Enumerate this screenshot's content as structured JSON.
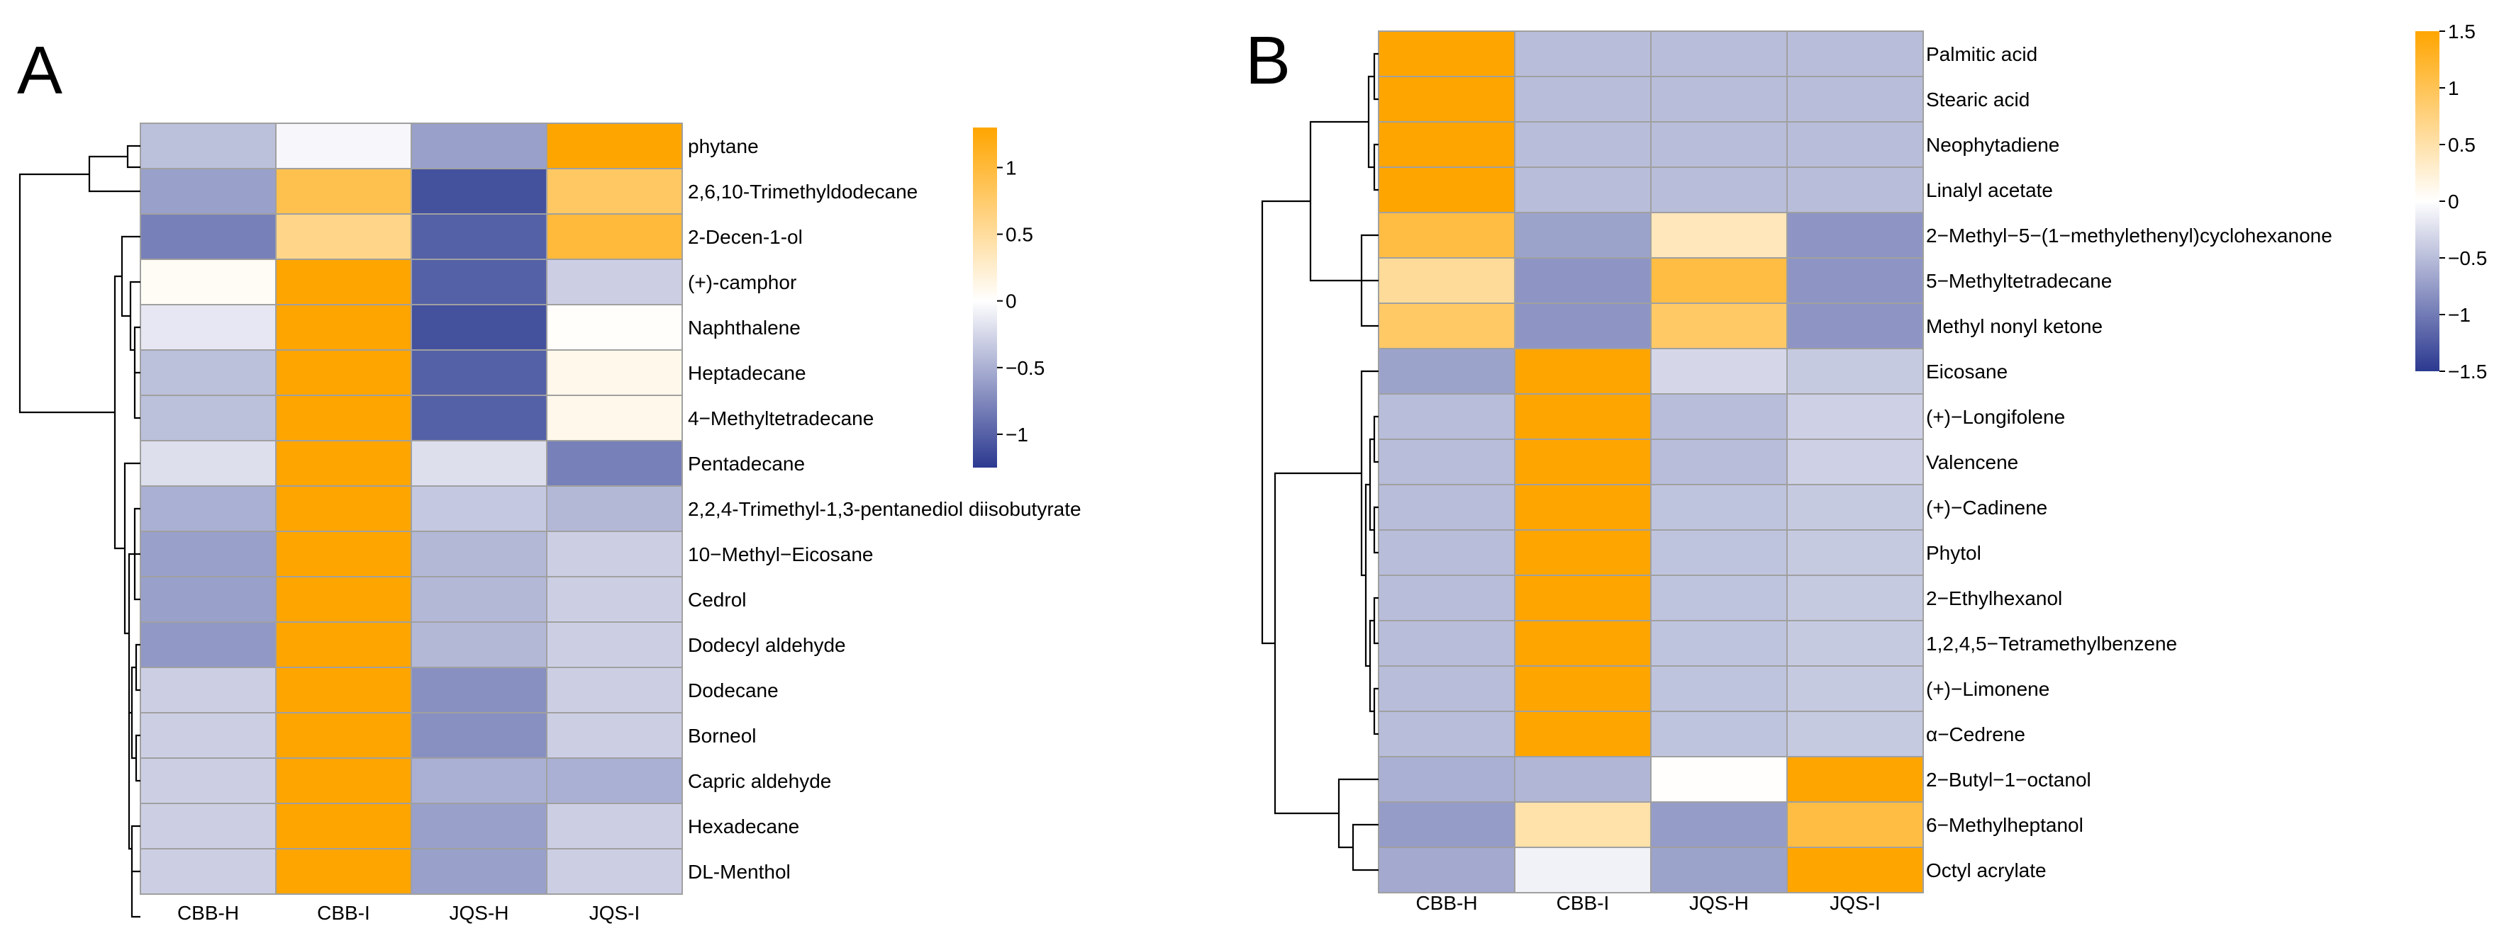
{
  "chart_data": [
    {
      "type": "heatmap",
      "panel": "A",
      "columns": [
        "CBB-H",
        "CBB-I",
        "JQS-H",
        "JQS-I"
      ],
      "rows": [
        "phytane",
        "2,6,10-Trimethyldodecane",
        "2-Decen-1-ol",
        "(+)-camphor",
        "Naphthalene",
        "Heptadecane",
        "4−Methyltetradecane",
        "Pentadecane",
        "2,2,4-Trimethyl-1,3-pentanediol diisobutyrate",
        "10−Methyl−Eicosane",
        "Cedrol",
        "Dodecyl aldehyde",
        "Dodecane",
        "Borneol",
        "Capric aldehyde",
        "Hexadecane",
        "DL-Menthol"
      ],
      "values": [
        [
          -0.4,
          -0.05,
          -0.6,
          1.4
        ],
        [
          -0.6,
          0.9,
          -1.1,
          0.8
        ],
        [
          -0.8,
          0.6,
          -1.0,
          1.0
        ],
        [
          0.05,
          1.4,
          -1.0,
          -0.3
        ],
        [
          -0.15,
          1.4,
          -1.1,
          0.02
        ],
        [
          -0.4,
          1.4,
          -1.0,
          0.1
        ],
        [
          -0.4,
          1.4,
          -1.0,
          0.1
        ],
        [
          -0.2,
          1.5,
          -0.2,
          -0.8
        ],
        [
          -0.5,
          1.5,
          -0.35,
          -0.45
        ],
        [
          -0.6,
          1.5,
          -0.45,
          -0.3
        ],
        [
          -0.6,
          1.5,
          -0.45,
          -0.3
        ],
        [
          -0.65,
          1.5,
          -0.45,
          -0.3
        ],
        [
          -0.3,
          1.5,
          -0.7,
          -0.3
        ],
        [
          -0.3,
          1.5,
          -0.7,
          -0.3
        ],
        [
          -0.3,
          1.5,
          -0.5,
          -0.5
        ],
        [
          -0.3,
          1.5,
          -0.6,
          -0.3
        ],
        [
          -0.3,
          1.5,
          -0.6,
          -0.3
        ]
      ],
      "colorbar": {
        "ticks": [
          1,
          0.5,
          0,
          -0.5,
          -1
        ],
        "tick_labels": [
          "1",
          "0.5",
          "0",
          "−0.5",
          "−1"
        ],
        "range": [
          -1.25,
          1.3
        ]
      },
      "colors": {
        "low": "#2b3990",
        "mid": "#ffffff",
        "high": "#ffa500"
      }
    },
    {
      "type": "heatmap",
      "panel": "B",
      "columns": [
        "CBB-H",
        "CBB-I",
        "JQS-H",
        "JQS-I"
      ],
      "rows": [
        "Palmitic acid",
        "Stearic acid",
        "Neophytadiene",
        "Linalyl acetate",
        "2−Methyl−5−(1−methylethenyl)cyclohexanone",
        "5−Methyltetradecane",
        "Methyl nonyl ketone",
        "Eicosane",
        "(+)−Longifolene",
        "Valencene",
        "(+)−Cadinene",
        "Phytol",
        "2−Ethylhexanol",
        "1,2,4,5−Tetramethylbenzene",
        "(+)−Limonene",
        "α−Cedrene",
        "2−Butyl−1−octanol",
        "6−Methylheptanol",
        "Octyl acrylate"
      ],
      "values": [
        [
          1.5,
          -0.5,
          -0.5,
          -0.5
        ],
        [
          1.5,
          -0.5,
          -0.5,
          -0.5
        ],
        [
          1.5,
          -0.5,
          -0.5,
          -0.5
        ],
        [
          1.5,
          -0.5,
          -0.5,
          -0.5
        ],
        [
          1.1,
          -0.7,
          0.4,
          -0.8
        ],
        [
          0.6,
          -0.8,
          1.1,
          -0.8
        ],
        [
          0.9,
          -0.8,
          0.9,
          -0.8
        ],
        [
          -0.7,
          1.5,
          -0.3,
          -0.4
        ],
        [
          -0.5,
          1.5,
          -0.5,
          -0.35
        ],
        [
          -0.5,
          1.5,
          -0.5,
          -0.35
        ],
        [
          -0.5,
          1.5,
          -0.45,
          -0.4
        ],
        [
          -0.5,
          1.5,
          -0.45,
          -0.4
        ],
        [
          -0.5,
          1.5,
          -0.45,
          -0.4
        ],
        [
          -0.5,
          1.5,
          -0.45,
          -0.4
        ],
        [
          -0.5,
          1.5,
          -0.45,
          -0.4
        ],
        [
          -0.5,
          1.5,
          -0.45,
          -0.4
        ],
        [
          -0.6,
          -0.55,
          0.02,
          1.5
        ],
        [
          -0.75,
          0.5,
          -0.75,
          1.1
        ],
        [
          -0.65,
          -0.1,
          -0.7,
          1.5
        ]
      ],
      "colorbar": {
        "ticks": [
          1.5,
          1,
          0.5,
          0,
          -0.5,
          -1,
          -1.5
        ],
        "tick_labels": [
          "1.5",
          "1",
          "0.5",
          "0",
          "−0.5",
          "−1",
          "−1.5"
        ],
        "range": [
          -1.5,
          1.5
        ]
      },
      "colors": {
        "low": "#2b3990",
        "mid": "#ffffff",
        "high": "#ffa500"
      }
    }
  ]
}
